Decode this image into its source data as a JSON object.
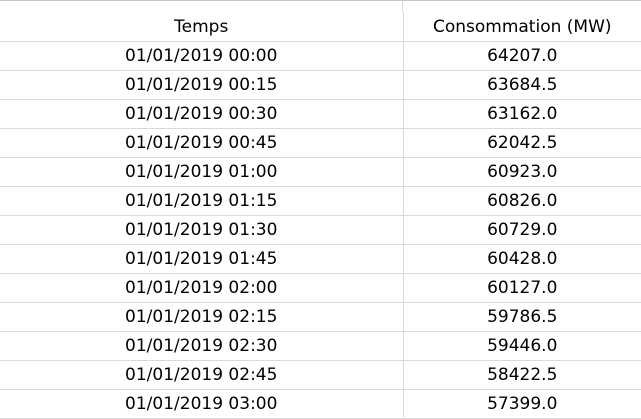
{
  "sheet": {
    "headers": [
      "Temps",
      "Consommation (MW)"
    ],
    "rows": [
      [
        "01/01/2019 00:00",
        "64207.0"
      ],
      [
        "01/01/2019 00:15",
        "63684.5"
      ],
      [
        "01/01/2019 00:30",
        "63162.0"
      ],
      [
        "01/01/2019 00:45",
        "62042.5"
      ],
      [
        "01/01/2019 01:00",
        "60923.0"
      ],
      [
        "01/01/2019 01:15",
        "60826.0"
      ],
      [
        "01/01/2019 01:30",
        "60729.0"
      ],
      [
        "01/01/2019 01:45",
        "60428.0"
      ],
      [
        "01/01/2019 02:00",
        "60127.0"
      ],
      [
        "01/01/2019 02:15",
        "59786.5"
      ],
      [
        "01/01/2019 02:30",
        "59446.0"
      ],
      [
        "01/01/2019 02:45",
        "58422.5"
      ],
      [
        "01/01/2019 03:00",
        "57399.0"
      ]
    ]
  }
}
